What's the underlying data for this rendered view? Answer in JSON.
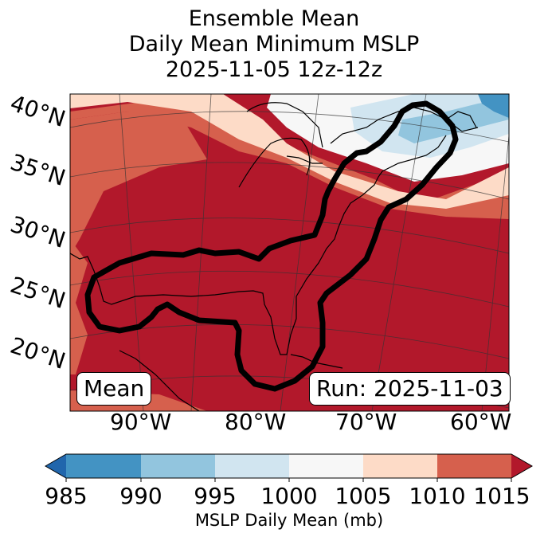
{
  "title": {
    "line1": "Ensemble Mean",
    "line2": "Daily Mean Minimum MSLP",
    "line3": "2025-11-05 12z-12z"
  },
  "map": {
    "lat_labels": [
      "40°N",
      "35°N",
      "30°N",
      "25°N",
      "20°N"
    ],
    "lon_labels": [
      "90°W",
      "80°W",
      "70°W",
      "60°W"
    ],
    "badge_left": "Mean",
    "badge_right": "Run: 2025-11-03",
    "contour_description_name": "ensemble-outline"
  },
  "colorbar": {
    "ticks": [
      "985",
      "990",
      "995",
      "1000",
      "1005",
      "1010",
      "1015"
    ],
    "label": "MSLP Daily Mean (mb)",
    "colors": {
      "lt985": "#2166ac",
      "b985_990": "#4393c3",
      "b990_995": "#92c5de",
      "b995_1000": "#d1e5f0",
      "b1000_1005": "#f7f7f7",
      "b1005_1010": "#fddbc7",
      "b1010_1015": "#d6604d",
      "gt1015": "#b2182b"
    }
  }
}
